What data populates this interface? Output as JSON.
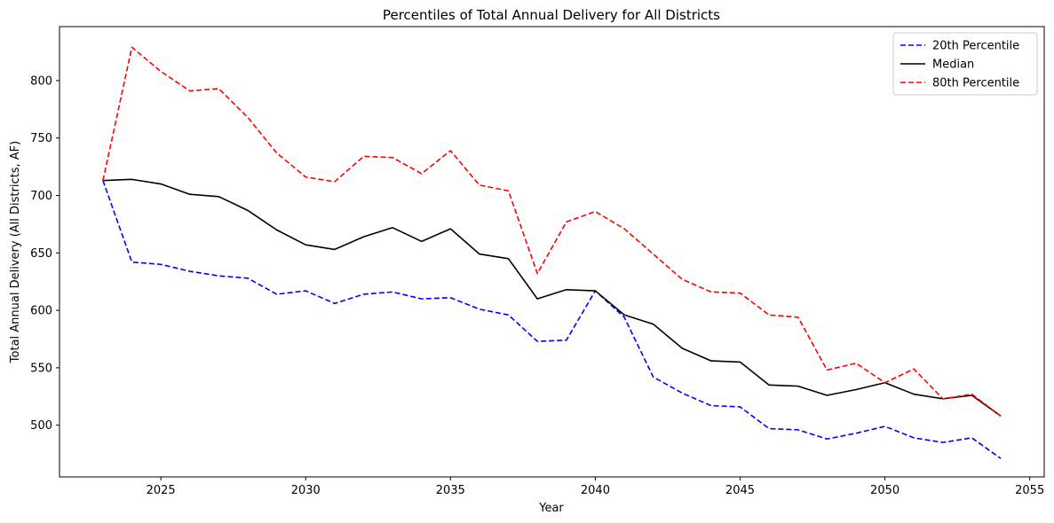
{
  "chart_data": {
    "type": "line",
    "title": "Percentiles of Total Annual Delivery for All Districts",
    "xlabel": "Year",
    "ylabel": "Total Annual Delivery (All Districts, AF)",
    "xlim": [
      2021.5,
      2055.5
    ],
    "ylim": [
      455,
      847
    ],
    "xticks": [
      2025,
      2030,
      2035,
      2040,
      2045,
      2050,
      2055
    ],
    "yticks": [
      500,
      550,
      600,
      650,
      700,
      750,
      800
    ],
    "grid": false,
    "legend_position": "top-right",
    "x": [
      2023,
      2024,
      2025,
      2026,
      2027,
      2028,
      2029,
      2030,
      2031,
      2032,
      2033,
      2034,
      2035,
      2036,
      2037,
      2038,
      2039,
      2040,
      2041,
      2042,
      2043,
      2044,
      2045,
      2046,
      2047,
      2048,
      2049,
      2050,
      2051,
      2052,
      2053,
      2054
    ],
    "series": [
      {
        "name": "20th Percentile",
        "color": "#0000ff",
        "style": "dashed",
        "values": [
          713,
          642,
          640,
          634,
          630,
          628,
          614,
          617,
          606,
          614,
          616,
          610,
          611,
          601,
          596,
          573,
          574,
          617,
          594,
          542,
          528,
          517,
          516,
          497,
          496,
          488,
          493,
          499,
          489,
          485,
          489,
          471
        ]
      },
      {
        "name": "Median",
        "color": "#000000",
        "style": "solid",
        "values": [
          713,
          714,
          710,
          701,
          699,
          687,
          670,
          657,
          653,
          664,
          672,
          660,
          671,
          649,
          645,
          610,
          618,
          617,
          596,
          588,
          567,
          556,
          555,
          535,
          534,
          526,
          531,
          537,
          527,
          523,
          526,
          508
        ]
      },
      {
        "name": "80th Percentile",
        "color": "#ff0000",
        "style": "dashed",
        "values": [
          713,
          829,
          808,
          791,
          793,
          768,
          737,
          716,
          712,
          734,
          733,
          719,
          739,
          709,
          704,
          632,
          677,
          686,
          671,
          649,
          627,
          616,
          615,
          596,
          594,
          548,
          554,
          537,
          549,
          523,
          527,
          508
        ]
      }
    ]
  }
}
